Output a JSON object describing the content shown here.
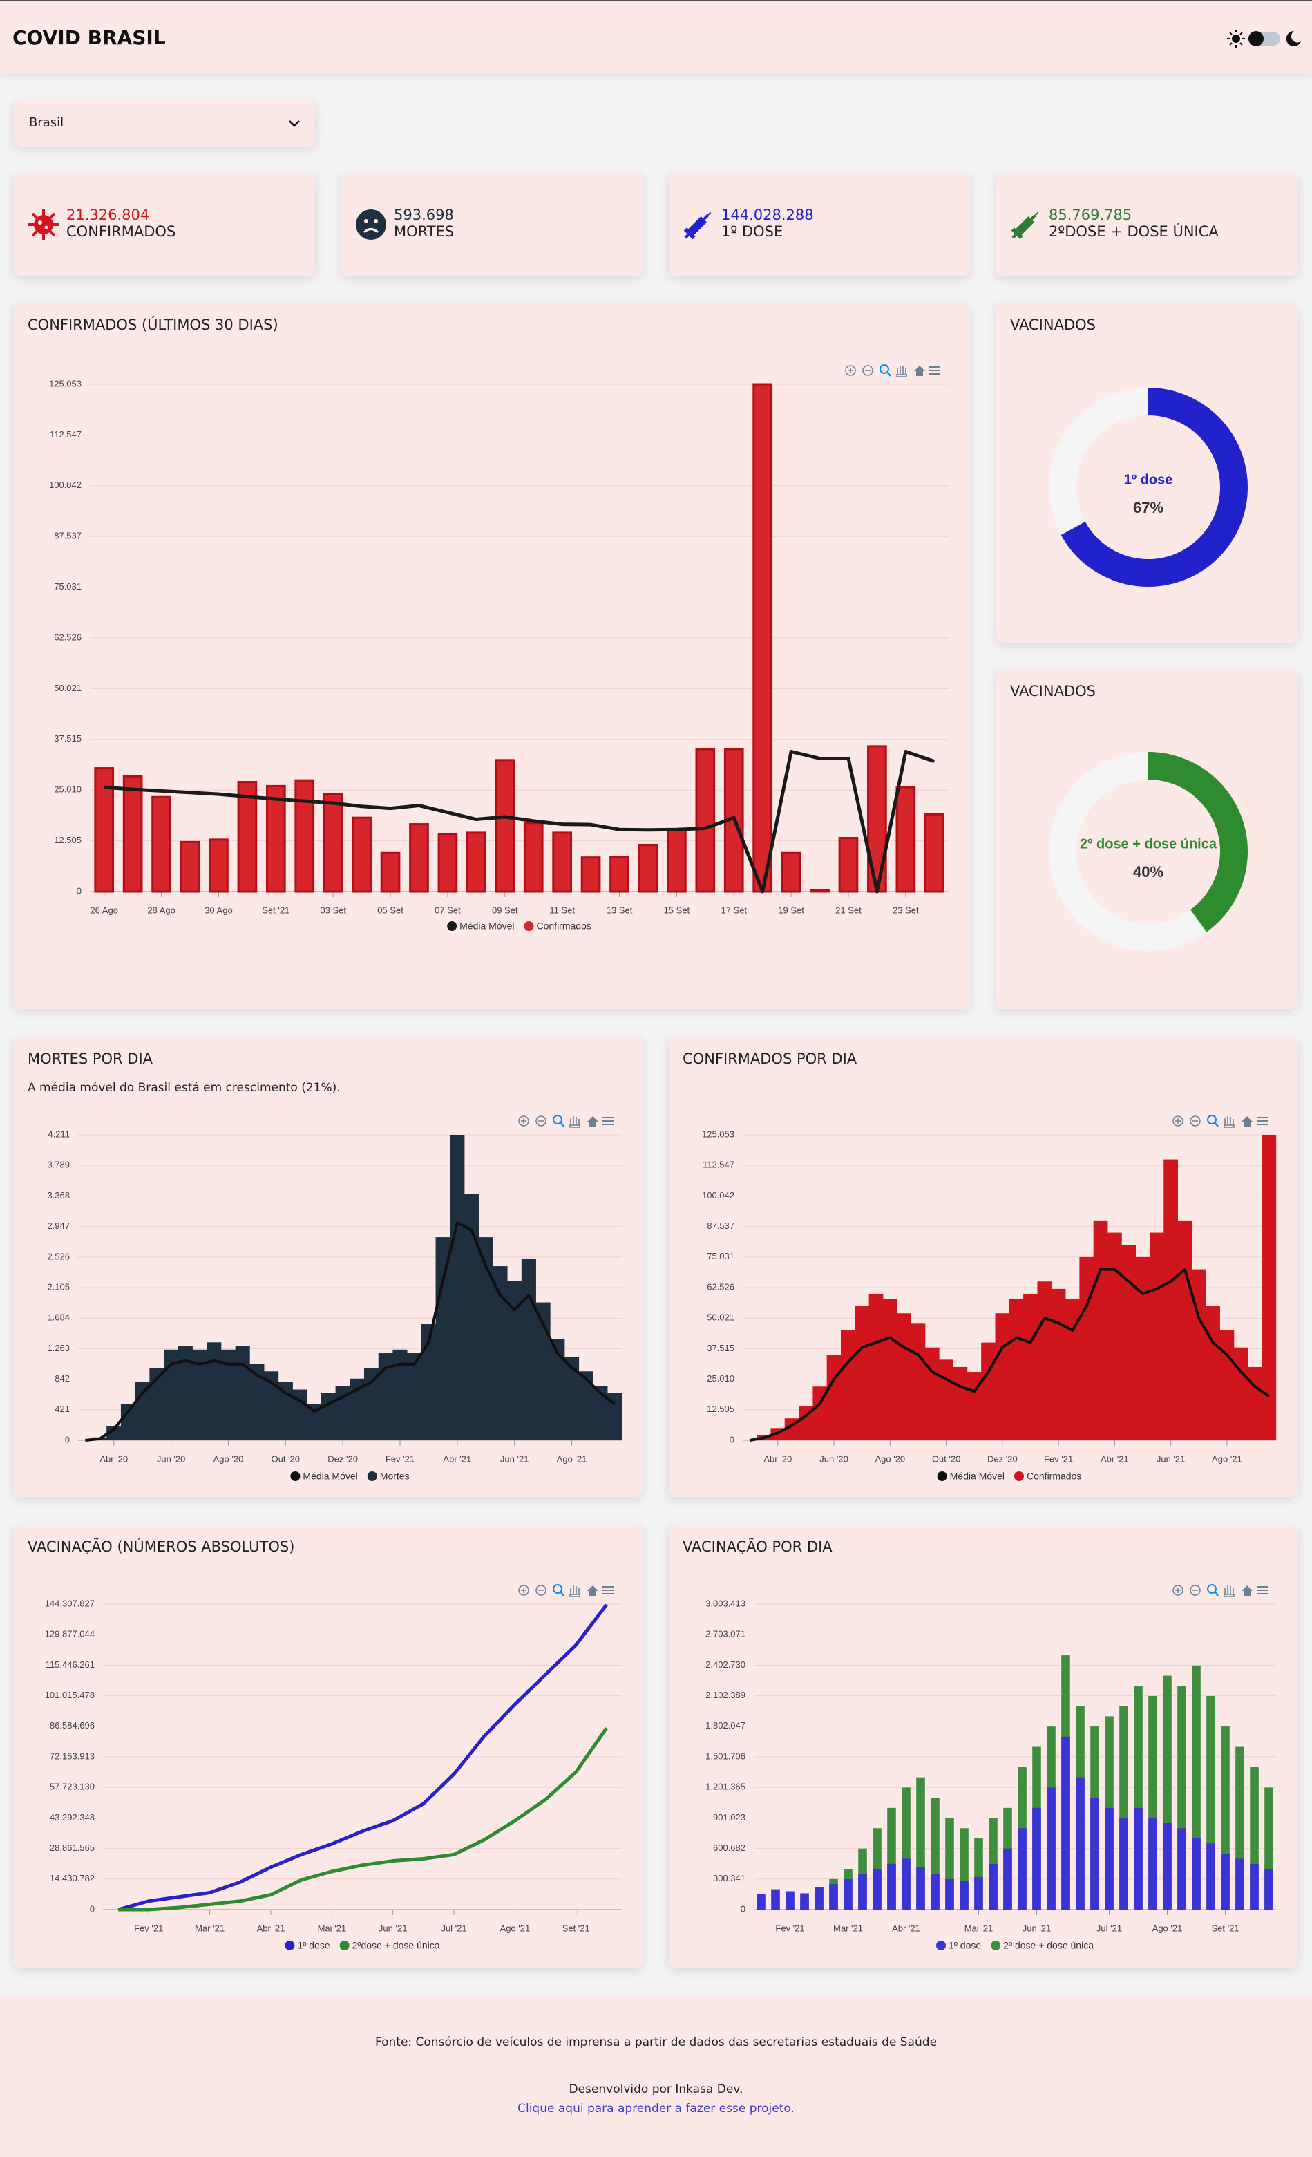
{
  "header": {
    "title": "COVID BRASIL"
  },
  "selector": {
    "value": "Brasil"
  },
  "cards": [
    {
      "value": "21.326.804",
      "label": "CONFIRMADOS",
      "color": "#d0161c"
    },
    {
      "value": "593.698",
      "label": "MORTES",
      "color": "#1e2f40"
    },
    {
      "value": "144.028.288",
      "label": "1º DOSE",
      "color": "#2222cc"
    },
    {
      "value": "85.769.785",
      "label": "2ºDOSE + DOSE ÚNICA",
      "color": "#2e7d32"
    }
  ],
  "chart_data": [
    {
      "type": "bar",
      "title": "CONFIRMADOS (ÚLTIMOS 30 DIAS)",
      "categories": [
        "26 Ago",
        null,
        "28 Ago",
        null,
        "30 Ago",
        null,
        "Set '21",
        null,
        "03 Set",
        null,
        "05 Set",
        null,
        "07 Set",
        null,
        "09 Set",
        null,
        "11 Set",
        null,
        "13 Set",
        null,
        "15 Set",
        null,
        "17 Set",
        null,
        "19 Set",
        null,
        "21 Set",
        null,
        "23 Set",
        null
      ],
      "series": [
        {
          "name": "Média Móvel",
          "type": "line",
          "color": "#1a1a1a",
          "values": [
            25700,
            25200,
            24800,
            24400,
            24000,
            23400,
            22800,
            22300,
            21800,
            21000,
            20500,
            21200,
            19500,
            17800,
            18400,
            17400,
            16600,
            16500,
            15300,
            15200,
            15300,
            15600,
            18200,
            0,
            34500,
            32800,
            32800,
            0,
            34500,
            32100
          ]
        },
        {
          "name": "Confirmados",
          "type": "bar",
          "color": "#d7262b",
          "values": [
            30400,
            28400,
            23300,
            12200,
            12800,
            27000,
            26000,
            27400,
            24000,
            18200,
            9500,
            16600,
            14200,
            14500,
            32400,
            16900,
            14500,
            8400,
            8500,
            11500,
            15200,
            35100,
            35100,
            125053,
            9500,
            400,
            13200,
            35800,
            25700,
            19000
          ]
        }
      ],
      "ylim": [
        0,
        125053
      ],
      "yticks": [
        0,
        {
          "value": 12505,
          "label": "12.505"
        },
        {
          "value": 25010,
          "label": "25.010"
        },
        {
          "value": 37515,
          "label": "37.515"
        },
        {
          "value": 50021,
          "label": "50.021"
        },
        {
          "value": 62526,
          "label": "62.526"
        },
        {
          "value": 75031,
          "label": "75.031"
        },
        {
          "value": 87537,
          "label": "87.537"
        },
        {
          "value": 100042,
          "label": "100.042"
        },
        {
          "value": 112547,
          "label": "112.547"
        },
        {
          "value": 125053,
          "label": "125.053"
        }
      ],
      "grid": true,
      "legend": "bottom"
    },
    {
      "type": "donut",
      "title": "VACINADOS",
      "categories": [
        "1º dose"
      ],
      "values": [
        67
      ],
      "value_labels": [
        "67%"
      ],
      "color": "#2222cc"
    },
    {
      "type": "donut",
      "title": "VACINADOS",
      "categories": [
        "2º dose + dose única"
      ],
      "values": [
        40
      ],
      "value_labels": [
        "40%"
      ],
      "color": "#2e8b2e"
    },
    {
      "type": "bar",
      "title": "MORTES POR DIA",
      "subtitle": "A média móvel do Brasil está em crescimento (21%).",
      "categories": [
        null,
        null,
        "Abr '20",
        null,
        null,
        null,
        "Jun '20",
        null,
        null,
        null,
        "Ago '20",
        null,
        null,
        null,
        "Out '20",
        null,
        null,
        null,
        "Dez '20",
        null,
        null,
        null,
        "Fev '21",
        null,
        null,
        null,
        "Abr '21",
        null,
        null,
        null,
        "Jun '21",
        null,
        null,
        null,
        "Ago '21",
        null,
        null,
        null
      ],
      "series": [
        {
          "name": "Média Móvel",
          "type": "line",
          "color": "#111111",
          "values": [
            0,
            20,
            150,
            400,
            650,
            850,
            1050,
            1100,
            1050,
            1100,
            1050,
            1050,
            900,
            800,
            650,
            550,
            400,
            500,
            600,
            700,
            800,
            1000,
            1050,
            1050,
            1350,
            2200,
            3000,
            2900,
            2400,
            2000,
            1800,
            2000,
            1600,
            1200,
            1000,
            850,
            650,
            500
          ]
        },
        {
          "name": "Mortes",
          "type": "bar",
          "color": "#1e2f40",
          "values": [
            0,
            40,
            200,
            500,
            800,
            1000,
            1250,
            1300,
            1250,
            1350,
            1250,
            1300,
            1050,
            950,
            800,
            700,
            500,
            650,
            750,
            850,
            1000,
            1200,
            1250,
            1200,
            1600,
            2800,
            4211,
            3400,
            2800,
            2400,
            2200,
            2500,
            1900,
            1400,
            1150,
            950,
            750,
            650
          ]
        }
      ],
      "ylim": [
        0,
        4211
      ],
      "yticks": [
        0,
        421,
        842,
        {
          "value": 1263,
          "label": "1.263"
        },
        {
          "value": 1684,
          "label": "1.684"
        },
        {
          "value": 2105,
          "label": "2.105"
        },
        {
          "value": 2526,
          "label": "2.526"
        },
        {
          "value": 2947,
          "label": "2.947"
        },
        {
          "value": 3368,
          "label": "3.368"
        },
        {
          "value": 3789,
          "label": "3.789"
        },
        {
          "value": 4211,
          "label": "4.211"
        }
      ],
      "grid": true,
      "legend": "bottom"
    },
    {
      "type": "bar",
      "title": "CONFIRMADOS POR DIA",
      "categories": [
        null,
        null,
        "Abr '20",
        null,
        null,
        null,
        "Jun '20",
        null,
        null,
        null,
        "Ago '20",
        null,
        null,
        null,
        "Out '20",
        null,
        null,
        null,
        "Dez '20",
        null,
        null,
        null,
        "Fev '21",
        null,
        null,
        null,
        "Abr '21",
        null,
        null,
        null,
        "Jun '21",
        null,
        null,
        null,
        "Ago '21",
        null,
        null,
        null
      ],
      "series": [
        {
          "name": "Média Móvel",
          "type": "line",
          "color": "#111111",
          "values": [
            0,
            1000,
            3000,
            6000,
            10000,
            15000,
            25000,
            32000,
            38000,
            40000,
            42000,
            38000,
            35000,
            28000,
            25000,
            22000,
            20000,
            28000,
            38000,
            42000,
            40000,
            50000,
            48000,
            45000,
            55000,
            70000,
            70000,
            65000,
            60000,
            62000,
            65000,
            70000,
            50000,
            40000,
            35000,
            28000,
            22000,
            18000
          ]
        },
        {
          "name": "Confirmados",
          "type": "bar",
          "color": "#d0161c",
          "values": [
            0,
            2000,
            5000,
            9000,
            14000,
            22000,
            35000,
            45000,
            55000,
            60000,
            58000,
            52000,
            48000,
            38000,
            33000,
            30000,
            28000,
            40000,
            52000,
            58000,
            60000,
            65000,
            62000,
            58000,
            75000,
            90000,
            85000,
            80000,
            75000,
            85000,
            115000,
            90000,
            70000,
            55000,
            45000,
            38000,
            30000,
            125053
          ]
        }
      ],
      "ylim": [
        0,
        125053
      ],
      "yticks": [
        0,
        {
          "value": 12505,
          "label": "12.505"
        },
        {
          "value": 25010,
          "label": "25.010"
        },
        {
          "value": 37515,
          "label": "37.515"
        },
        {
          "value": 50021,
          "label": "50.021"
        },
        {
          "value": 62526,
          "label": "62.526"
        },
        {
          "value": 75031,
          "label": "75.031"
        },
        {
          "value": 87537,
          "label": "87.537"
        },
        {
          "value": 100042,
          "label": "100.042"
        },
        {
          "value": 112547,
          "label": "112.547"
        },
        {
          "value": 125053,
          "label": "125.053"
        }
      ],
      "grid": true,
      "legend": "bottom"
    },
    {
      "type": "line",
      "title": "VACINAÇÃO (NÚMEROS ABSOLUTOS)",
      "categories": [
        null,
        "Fev '21",
        null,
        "Mar '21",
        null,
        "Abr '21",
        null,
        "Mai '21",
        null,
        "Jun '21",
        null,
        "Jul '21",
        null,
        "Ago '21",
        null,
        "Set '21",
        null
      ],
      "series": [
        {
          "name": "1º dose",
          "color": "#2a22c8",
          "values": [
            0,
            4000000,
            6000000,
            8000000,
            13000000,
            20000000,
            26000000,
            31000000,
            37000000,
            42000000,
            50000000,
            64000000,
            82000000,
            97000000,
            111000000,
            125000000,
            144028288
          ]
        },
        {
          "name": "2ºdose + dose única",
          "color": "#2e8b2e",
          "values": [
            0,
            0,
            1000000,
            2500000,
            4000000,
            7000000,
            14000000,
            18000000,
            21000000,
            23000000,
            24000000,
            26000000,
            33000000,
            42000000,
            52000000,
            65000000,
            85769785
          ]
        }
      ],
      "ylim": [
        0,
        144307827
      ],
      "yticks": [
        0,
        {
          "value": 14430782,
          "label": "14.430.782"
        },
        {
          "value": 28861565,
          "label": "28.861.565"
        },
        {
          "value": 43292348,
          "label": "43.292.348"
        },
        {
          "value": 57723130,
          "label": "57.723.130"
        },
        {
          "value": 72153913,
          "label": "72.153.913"
        },
        {
          "value": 86584696,
          "label": "86.584.696"
        },
        {
          "value": 101015478,
          "label": "101.015.478"
        },
        {
          "value": 115446261,
          "label": "115.446.261"
        },
        {
          "value": 129877044,
          "label": "129.877.044"
        },
        {
          "value": 144307827,
          "label": "144.307.827"
        }
      ],
      "grid": true,
      "legend": "bottom"
    },
    {
      "type": "bar",
      "title": "VACINAÇÃO POR DIA",
      "categories": [
        null,
        null,
        "Fev '21",
        null,
        null,
        null,
        "Mar '21",
        null,
        null,
        null,
        "Abr '21",
        null,
        null,
        null,
        null,
        "Mai '21",
        null,
        null,
        null,
        "Jun '21",
        null,
        null,
        null,
        null,
        "Jul '21",
        null,
        null,
        null,
        "Ago '21",
        null,
        null,
        null,
        "Set '21",
        null,
        null,
        null
      ],
      "series": [
        {
          "name": "1º dose",
          "color": "#3a33d6",
          "values": [
            150000,
            200000,
            180000,
            160000,
            220000,
            250000,
            300000,
            350000,
            400000,
            450000,
            500000,
            420000,
            350000,
            300000,
            280000,
            320000,
            450000,
            600000,
            800000,
            1000000,
            1200000,
            1700000,
            1300000,
            1100000,
            1000000,
            900000,
            1000000,
            900000,
            850000,
            800000,
            700000,
            650000,
            550000,
            500000,
            450000,
            400000
          ]
        },
        {
          "name": "2º dose + dose única",
          "color": "#3e8e3e",
          "values": [
            0,
            0,
            50000,
            100000,
            200000,
            300000,
            400000,
            600000,
            800000,
            1000000,
            1200000,
            1300000,
            1100000,
            900000,
            800000,
            700000,
            900000,
            1000000,
            1400000,
            1600000,
            1800000,
            2500000,
            2000000,
            1800000,
            1900000,
            2000000,
            2200000,
            2100000,
            2300000,
            2200000,
            2400000,
            2100000,
            1800000,
            1600000,
            1400000,
            1200000
          ]
        }
      ],
      "ylim": [
        0,
        3003413
      ],
      "yticks": [
        0,
        {
          "value": 300341,
          "label": "300.341"
        },
        {
          "value": 600682,
          "label": "600.682"
        },
        {
          "value": 901023,
          "label": "901.023"
        },
        {
          "value": 1201365,
          "label": "1.201.365"
        },
        {
          "value": 1501706,
          "label": "1.501.706"
        },
        {
          "value": 1802047,
          "label": "1.802.047"
        },
        {
          "value": 2102389,
          "label": "2.102.389"
        },
        {
          "value": 2402730,
          "label": "2.402.730"
        },
        {
          "value": 2703071,
          "label": "2.703.071"
        },
        {
          "value": 3003413,
          "label": "3.003.413"
        }
      ],
      "grid": true,
      "legend": "bottom"
    }
  ],
  "footer": {
    "source": "Fonte: Consórcio de veículos de imprensa a partir de dados das secretarias estaduais de Saúde",
    "credit": "Desenvolvido por Inkasa Dev.",
    "link": "Clique aqui para aprender a fazer esse projeto."
  }
}
